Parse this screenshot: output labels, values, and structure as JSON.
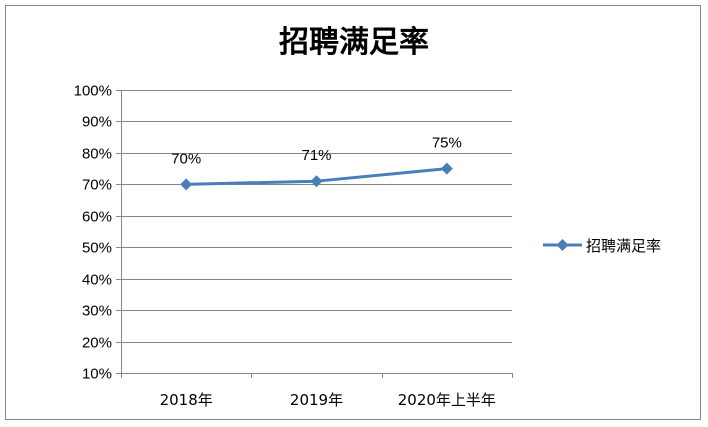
{
  "chart_data": {
    "type": "line",
    "title": "招聘满足率",
    "categories": [
      "2018年",
      "2019年",
      "2020年上半年"
    ],
    "series": [
      {
        "name": "招聘满足率",
        "values": [
          70,
          71,
          75
        ],
        "data_labels": [
          "70%",
          "71%",
          "75%"
        ]
      }
    ],
    "ylim": [
      10,
      100
    ],
    "y_ticks": [
      10,
      20,
      30,
      40,
      50,
      60,
      70,
      80,
      90,
      100
    ],
    "y_tick_labels": [
      "10%",
      "20%",
      "30%",
      "40%",
      "50%",
      "60%",
      "70%",
      "80%",
      "90%",
      "100%"
    ],
    "xlabel": "",
    "ylabel": "",
    "grid": true,
    "legend": "right",
    "colors": {
      "series": "#4A7EBB",
      "gridline": "#868686",
      "frame": "#868686"
    }
  }
}
